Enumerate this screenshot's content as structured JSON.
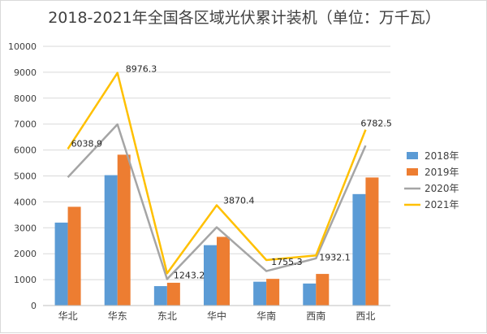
{
  "chart_data": {
    "type": "bar",
    "title": "2018-2021年全国各区域光伏累计装机（单位：万千瓦）",
    "categories": [
      "华北",
      "华东",
      "东北",
      "华中",
      "华南",
      "西南",
      "西北"
    ],
    "series": [
      {
        "name": "2018年",
        "kind": "bar",
        "color": "#5b9bd5",
        "values": [
          3200,
          5030,
          750,
          2330,
          920,
          850,
          4300
        ]
      },
      {
        "name": "2019年",
        "kind": "bar",
        "color": "#ed7d31",
        "values": [
          3810,
          5820,
          880,
          2650,
          1030,
          1220,
          4940
        ]
      },
      {
        "name": "2020年",
        "kind": "line",
        "color": "#a5a5a5",
        "values": [
          4950,
          6990,
          1020,
          3020,
          1330,
          1820,
          6170
        ]
      },
      {
        "name": "2021年",
        "kind": "line",
        "color": "#ffc000",
        "values": [
          6038.9,
          8976.3,
          1243.2,
          3870.4,
          1755.3,
          1932.1,
          6782.5
        ]
      }
    ],
    "data_labels": [
      "6038.9",
      "8976.3",
      "1243.2",
      "3870.4",
      "1755.3",
      "1932.1",
      "6782.5"
    ],
    "ylim": [
      0,
      10000
    ],
    "yticks": [
      "0",
      "1000",
      "2000",
      "3000",
      "4000",
      "5000",
      "6000",
      "7000",
      "8000",
      "9000",
      "10000"
    ],
    "grid": true,
    "legend_position": "right"
  }
}
